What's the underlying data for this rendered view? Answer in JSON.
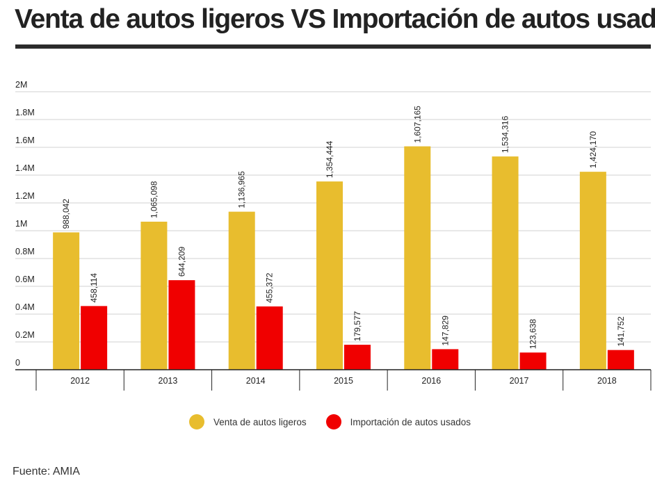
{
  "title": "Venta de autos ligeros VS Importación de autos usados",
  "source": "Fuente: AMIA",
  "colors": {
    "ventas": "#e8bd2e",
    "importacion": "#f00000",
    "grid": "#d0d0d0",
    "axis": "#222222"
  },
  "legend": [
    {
      "label": "Venta de autos ligeros",
      "color": "#e8bd2e"
    },
    {
      "label": "Importación de autos usados",
      "color": "#f00000"
    }
  ],
  "chart_data": {
    "type": "bar",
    "title": "Venta de autos ligeros VS Importación de autos usados",
    "xlabel": "",
    "ylabel": "",
    "categories": [
      "2012",
      "2013",
      "2014",
      "2015",
      "2016",
      "2017",
      "2018"
    ],
    "series": [
      {
        "name": "Venta de autos ligeros",
        "color": "#e8bd2e",
        "values": [
          988042,
          1065098,
          1136965,
          1354444,
          1607165,
          1534316,
          1424170
        ],
        "labels": [
          "988,042",
          "1,065,098",
          "1,136,965",
          "1,354,444",
          "1,607,165",
          "1,534,316",
          "1,424,170"
        ]
      },
      {
        "name": "Importación de autos usados",
        "color": "#f00000",
        "values": [
          458114,
          644209,
          455372,
          179577,
          147829,
          123638,
          141752
        ],
        "labels": [
          "458,114",
          "644,209",
          "455,372",
          "179,577",
          "147,829",
          "123,638",
          "141,752"
        ]
      }
    ],
    "ylim": [
      0,
      2000000
    ],
    "yticks": [
      0,
      200000,
      400000,
      600000,
      800000,
      1000000,
      1200000,
      1400000,
      1600000,
      1800000,
      2000000
    ],
    "ytick_labels": [
      "0",
      "0.2M",
      "0.4M",
      "0.6M",
      "0.8M",
      "1M",
      "1.2M",
      "1.4M",
      "1.6M",
      "1.8M",
      "2M"
    ],
    "grid": true,
    "legend_position": "bottom"
  }
}
